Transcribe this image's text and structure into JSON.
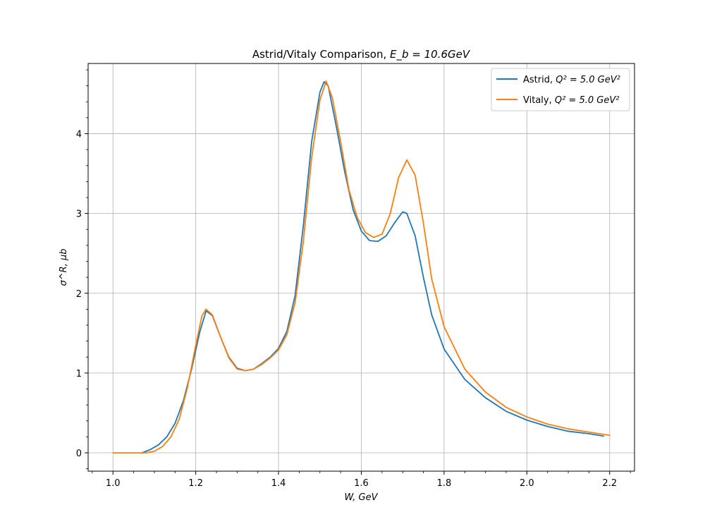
{
  "chart_data": {
    "type": "line",
    "title_text": "Astrid/Vitaly Comparison, ",
    "title_math": "E_b = 10.6GeV",
    "xlabel": "W, GeV",
    "ylabel": "σ^R, μb",
    "xlim": [
      0.94,
      2.26
    ],
    "ylim": [
      -0.23,
      4.88
    ],
    "xticks": [
      1.0,
      1.2,
      1.4,
      1.6,
      1.8,
      2.0,
      2.2
    ],
    "xtick_labels": [
      "1.0",
      "1.2",
      "1.4",
      "1.6",
      "1.8",
      "2.0",
      "2.2"
    ],
    "yticks": [
      0,
      1,
      2,
      3,
      4
    ],
    "ytick_labels": [
      "0",
      "1",
      "2",
      "3",
      "4"
    ],
    "grid": true,
    "legend_position": "top-right",
    "series": [
      {
        "name": "Astrid, Q^2 = 5.0 GeV^2",
        "legend_prefix": "Astrid, ",
        "legend_math": "Q² = 5.0 GeV²",
        "color": "#1f77b4",
        "points": [
          [
            1.07,
            0.0
          ],
          [
            1.09,
            0.04
          ],
          [
            1.11,
            0.1
          ],
          [
            1.13,
            0.2
          ],
          [
            1.15,
            0.37
          ],
          [
            1.17,
            0.65
          ],
          [
            1.19,
            1.05
          ],
          [
            1.21,
            1.52
          ],
          [
            1.225,
            1.78
          ],
          [
            1.24,
            1.72
          ],
          [
            1.26,
            1.45
          ],
          [
            1.28,
            1.2
          ],
          [
            1.3,
            1.06
          ],
          [
            1.32,
            1.03
          ],
          [
            1.34,
            1.05
          ],
          [
            1.36,
            1.12
          ],
          [
            1.38,
            1.2
          ],
          [
            1.4,
            1.31
          ],
          [
            1.42,
            1.52
          ],
          [
            1.44,
            1.97
          ],
          [
            1.46,
            2.85
          ],
          [
            1.48,
            3.9
          ],
          [
            1.5,
            4.52
          ],
          [
            1.51,
            4.65
          ],
          [
            1.52,
            4.6
          ],
          [
            1.54,
            4.08
          ],
          [
            1.56,
            3.52
          ],
          [
            1.58,
            3.05
          ],
          [
            1.6,
            2.78
          ],
          [
            1.62,
            2.66
          ],
          [
            1.64,
            2.65
          ],
          [
            1.66,
            2.72
          ],
          [
            1.68,
            2.88
          ],
          [
            1.7,
            3.02
          ],
          [
            1.71,
            3.0
          ],
          [
            1.73,
            2.72
          ],
          [
            1.75,
            2.2
          ],
          [
            1.77,
            1.73
          ],
          [
            1.8,
            1.3
          ],
          [
            1.85,
            0.92
          ],
          [
            1.9,
            0.69
          ],
          [
            1.95,
            0.52
          ],
          [
            2.0,
            0.41
          ],
          [
            2.05,
            0.33
          ],
          [
            2.1,
            0.27
          ],
          [
            2.15,
            0.24
          ],
          [
            2.185,
            0.21
          ]
        ]
      },
      {
        "name": "Vitaly, Q^2 = 5.0 GeV^2",
        "legend_prefix": "Vitaly, ",
        "legend_math": "Q² = 5.0 GeV²",
        "color": "#ff7f0e",
        "points": [
          [
            1.0,
            0.0
          ],
          [
            1.05,
            0.0
          ],
          [
            1.08,
            0.0
          ],
          [
            1.1,
            0.02
          ],
          [
            1.12,
            0.08
          ],
          [
            1.14,
            0.2
          ],
          [
            1.16,
            0.42
          ],
          [
            1.18,
            0.82
          ],
          [
            1.2,
            1.35
          ],
          [
            1.215,
            1.72
          ],
          [
            1.225,
            1.8
          ],
          [
            1.24,
            1.73
          ],
          [
            1.26,
            1.45
          ],
          [
            1.28,
            1.19
          ],
          [
            1.3,
            1.05
          ],
          [
            1.32,
            1.03
          ],
          [
            1.34,
            1.05
          ],
          [
            1.36,
            1.11
          ],
          [
            1.38,
            1.19
          ],
          [
            1.4,
            1.29
          ],
          [
            1.42,
            1.48
          ],
          [
            1.44,
            1.88
          ],
          [
            1.46,
            2.65
          ],
          [
            1.48,
            3.7
          ],
          [
            1.5,
            4.42
          ],
          [
            1.515,
            4.66
          ],
          [
            1.53,
            4.45
          ],
          [
            1.55,
            3.9
          ],
          [
            1.57,
            3.3
          ],
          [
            1.59,
            2.95
          ],
          [
            1.61,
            2.76
          ],
          [
            1.63,
            2.7
          ],
          [
            1.65,
            2.74
          ],
          [
            1.67,
            3.0
          ],
          [
            1.69,
            3.45
          ],
          [
            1.71,
            3.67
          ],
          [
            1.73,
            3.48
          ],
          [
            1.75,
            2.88
          ],
          [
            1.77,
            2.18
          ],
          [
            1.8,
            1.58
          ],
          [
            1.85,
            1.05
          ],
          [
            1.9,
            0.76
          ],
          [
            1.95,
            0.57
          ],
          [
            2.0,
            0.45
          ],
          [
            2.05,
            0.36
          ],
          [
            2.1,
            0.3
          ],
          [
            2.15,
            0.26
          ],
          [
            2.2,
            0.22
          ]
        ]
      }
    ]
  }
}
